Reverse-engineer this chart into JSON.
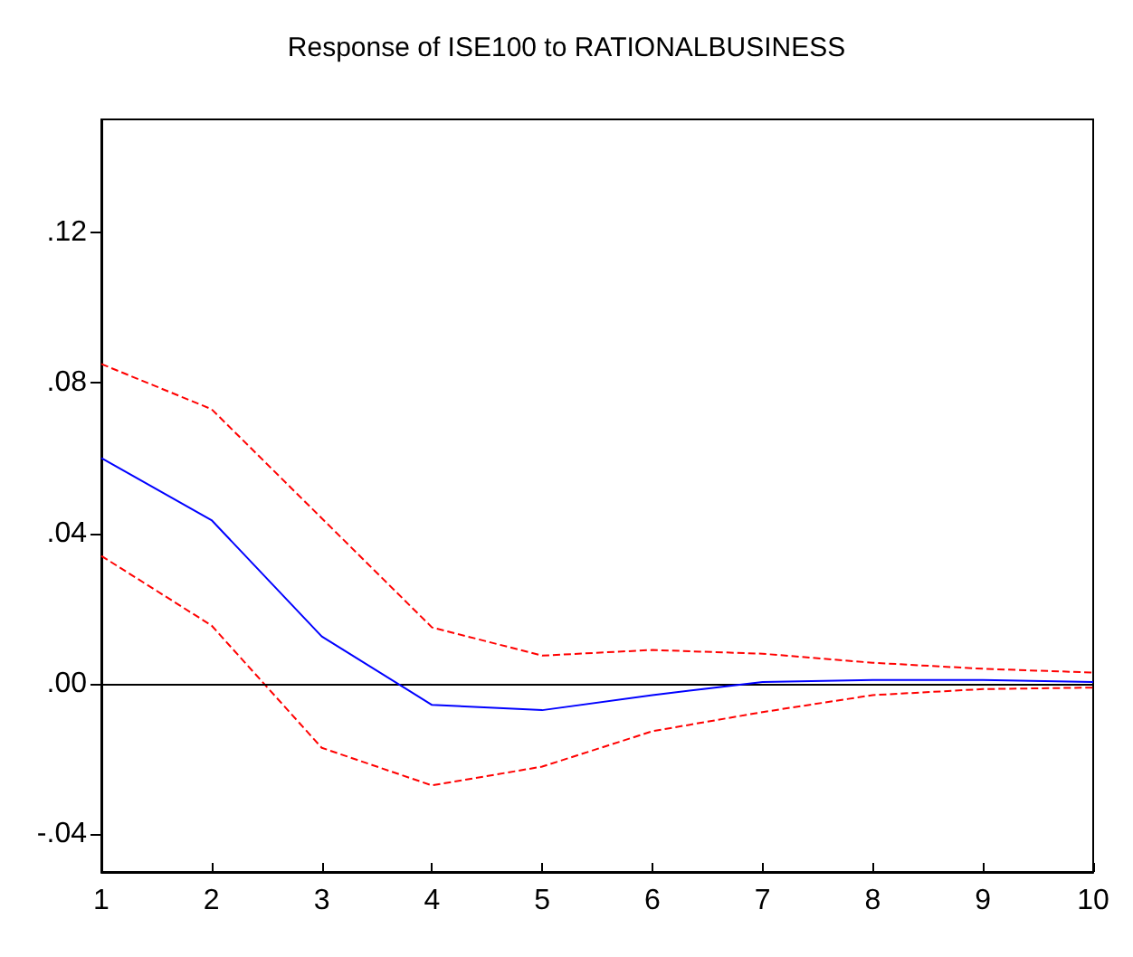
{
  "chart_data": {
    "type": "line",
    "title": "Response of ISE100 to RATIONALBUSINESS",
    "x": [
      1,
      2,
      3,
      4,
      5,
      6,
      7,
      8,
      9,
      10
    ],
    "series": [
      {
        "color": "#0000ff",
        "line_style": "solid",
        "values": [
          0.06,
          0.0435,
          0.0126,
          -0.0056,
          -0.007,
          -0.003,
          0.0005,
          0.001,
          0.001,
          0.0005
        ]
      },
      {
        "color": "#ff0000",
        "line_style": "dashed",
        "values": [
          0.085,
          0.073,
          0.044,
          0.015,
          0.0075,
          0.009,
          0.008,
          0.0056,
          0.004,
          0.003
        ]
      },
      {
        "color": "#ff0000",
        "line_style": "dashed",
        "values": [
          0.034,
          0.0155,
          -0.017,
          -0.027,
          -0.022,
          -0.0126,
          -0.0075,
          -0.003,
          -0.0014,
          -0.001
        ]
      }
    ],
    "xlim": [
      1,
      10
    ],
    "xticks": [
      1,
      2,
      3,
      4,
      5,
      6,
      7,
      8,
      9,
      10
    ],
    "ylim": [
      -0.05,
      0.15
    ],
    "yticks": [
      {
        "value": -0.04,
        "label": "-.04"
      },
      {
        "value": 0,
        "label": ".00"
      },
      {
        "value": 0.04,
        "label": ".04"
      },
      {
        "value": 0.08,
        "label": ".08"
      },
      {
        "value": 0.12,
        "label": ".12"
      }
    ],
    "ref_lines": [
      {
        "axis": "y",
        "value": 0,
        "color": "#000000"
      }
    ],
    "grid": false,
    "marker": "none"
  }
}
